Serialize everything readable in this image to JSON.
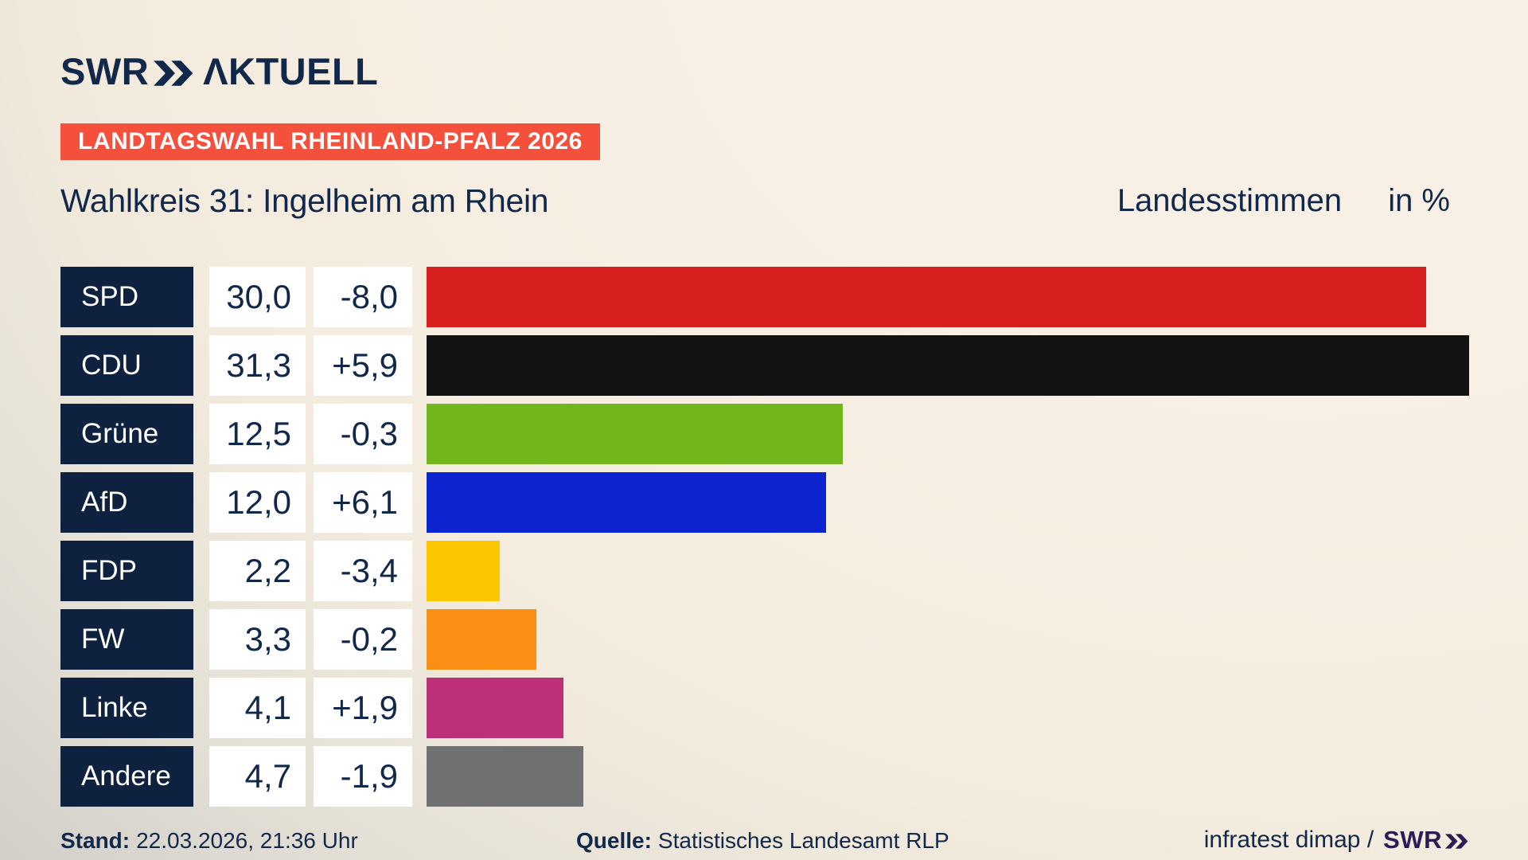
{
  "brand": {
    "logo_swr": "SWR",
    "logo_aktuell": "ΛKTUELL"
  },
  "header": {
    "banner": "LANDTAGSWAHL RHEINLAND-PFALZ 2026",
    "title": "Wahlkreis 31: Ingelheim am Rhein",
    "subtitle": "Landesstimmen",
    "unit": "in %"
  },
  "chart_data": {
    "type": "bar",
    "title": "Wahlkreis 31: Ingelheim am Rhein",
    "subtitle": "Landesstimmen in %",
    "orientation": "horizontal",
    "max_value": 31.3,
    "grid": false,
    "legend": false,
    "categories": [
      "SPD",
      "CDU",
      "Grüne",
      "AfD",
      "FDP",
      "FW",
      "Linke",
      "Andere"
    ],
    "values": [
      30.0,
      31.3,
      12.5,
      12.0,
      2.2,
      3.3,
      4.1,
      4.7
    ],
    "changes": [
      -8.0,
      5.9,
      -0.3,
      6.1,
      -3.4,
      -0.2,
      1.9,
      -1.9
    ],
    "value_labels": [
      "30,0",
      "31,3",
      "12,5",
      "12,0",
      "2,2",
      "3,3",
      "4,1",
      "4,7"
    ],
    "change_labels": [
      "-8,0",
      "+5,9",
      "-0,3",
      "+6,1",
      "-3,4",
      "-0,2",
      "+1,9",
      "-1,9"
    ],
    "bar_colors": [
      "#d71f20",
      "#121212",
      "#72b61e",
      "#0b24cf",
      "#fdc700",
      "#f98f14",
      "#bc3077",
      "#6f7072"
    ]
  },
  "colors": {
    "brand_navy": "#12284a",
    "label_box_navy": "#0e2240",
    "banner_red": "#f5503c",
    "footer_swr_purple": "#2d1b55"
  },
  "footer": {
    "stand_label": "Stand:",
    "stand_value": "22.03.2026, 21:36 Uhr",
    "quelle_label": "Quelle:",
    "quelle_value": "Statistisches Landesamt RLP",
    "credit": "infratest dimap /",
    "credit_logo_swr": "SWR"
  }
}
